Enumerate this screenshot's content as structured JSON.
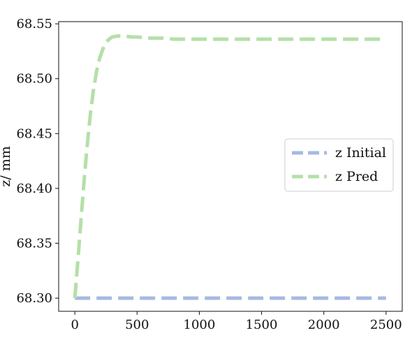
{
  "chart_data": {
    "type": "line",
    "title": "",
    "xlabel": "",
    "ylabel": "z/ mm",
    "xlim": [
      -130,
      2630
    ],
    "ylim": [
      68.288,
      68.552
    ],
    "xticks": [
      0,
      500,
      1000,
      1500,
      2000,
      2500
    ],
    "xtick_labels": [
      "0",
      "500",
      "1000",
      "1500",
      "2000",
      "2500"
    ],
    "yticks": [
      68.3,
      68.35,
      68.4,
      68.45,
      68.5,
      68.55
    ],
    "ytick_labels": [
      "68.30",
      "68.35",
      "68.40",
      "68.45",
      "68.50",
      "68.55"
    ],
    "grid": false,
    "legend_position": "center-right",
    "series": [
      {
        "name": "z Initial",
        "color": "#a6b9e2",
        "style": "dashed",
        "x": [
          0,
          2500
        ],
        "y": [
          68.3,
          68.3
        ]
      },
      {
        "name": "z Pred",
        "color": "#b4e0a8",
        "style": "dashed",
        "x": [
          0,
          25,
          50,
          75,
          100,
          125,
          150,
          175,
          200,
          225,
          250,
          275,
          300,
          350,
          400,
          450,
          500,
          600,
          700,
          800,
          1000,
          1200,
          1500,
          2000,
          2500
        ],
        "y": [
          68.3,
          68.335,
          68.372,
          68.408,
          68.44,
          68.468,
          68.49,
          68.507,
          68.519,
          68.527,
          68.533,
          68.536,
          68.538,
          68.539,
          68.539,
          68.538,
          68.538,
          68.537,
          68.537,
          68.536,
          68.536,
          68.536,
          68.536,
          68.536,
          68.536
        ]
      }
    ]
  }
}
